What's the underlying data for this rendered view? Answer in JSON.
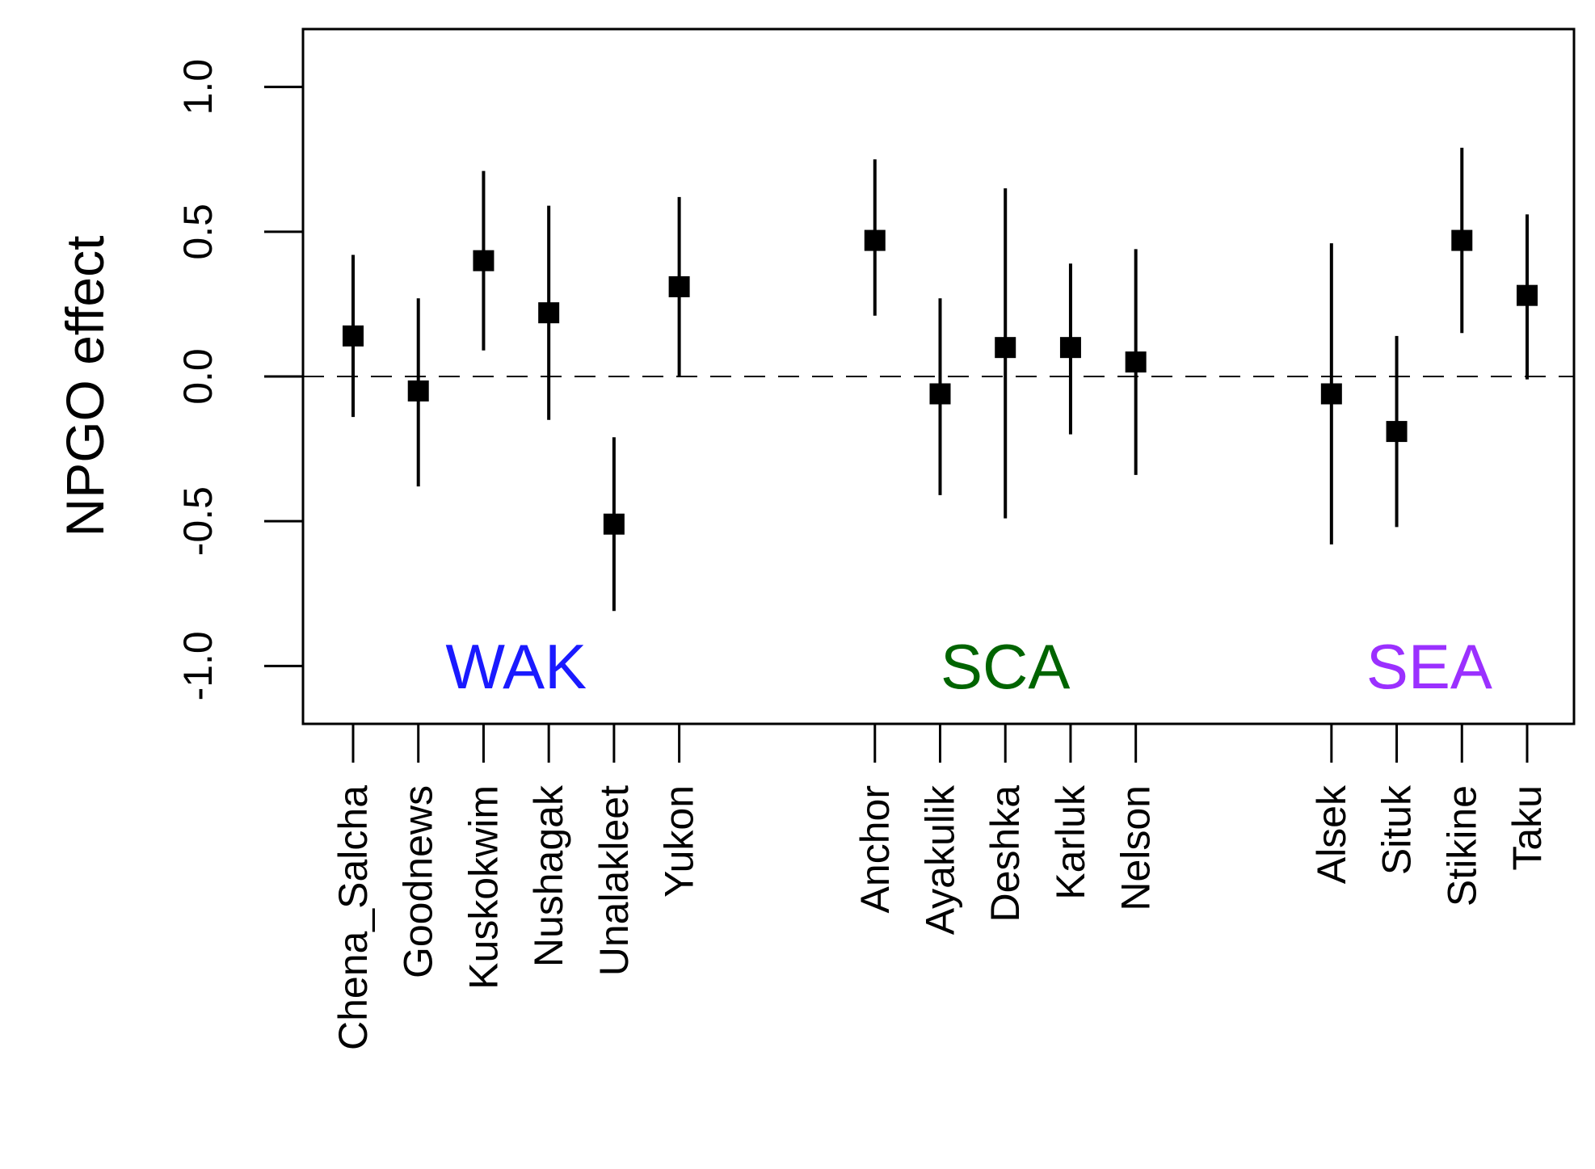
{
  "chart_data": {
    "type": "scatter",
    "subtype": "point estimates with error bars",
    "ylabel": "NPGO effect",
    "xlabel": "",
    "ylim": [
      -1.2,
      1.2
    ],
    "yticks": [
      -1.0,
      -0.5,
      0.0,
      0.5,
      1.0
    ],
    "ytick_labels": [
      "-1.0",
      "-0.5",
      "0.0",
      "0.5",
      "1.0"
    ],
    "reference_line": {
      "y": 0.0,
      "style": "dashed"
    },
    "grid": false,
    "groups": [
      {
        "label": "WAK",
        "color": "#1a1aff",
        "items": [
          {
            "name": "Chena_Salcha",
            "estimate": 0.14,
            "lower": -0.14,
            "upper": 0.42
          },
          {
            "name": "Goodnews",
            "estimate": -0.05,
            "lower": -0.38,
            "upper": 0.27
          },
          {
            "name": "Kuskokwim",
            "estimate": 0.4,
            "lower": 0.09,
            "upper": 0.71
          },
          {
            "name": "Nushagak",
            "estimate": 0.22,
            "lower": -0.15,
            "upper": 0.59
          },
          {
            "name": "Unalakleet",
            "estimate": -0.51,
            "lower": -0.81,
            "upper": -0.21
          },
          {
            "name": "Yukon",
            "estimate": 0.31,
            "lower": 0.0,
            "upper": 0.62
          }
        ]
      },
      {
        "label": "SCA",
        "color": "#006400",
        "items": [
          {
            "name": "Anchor",
            "estimate": 0.47,
            "lower": 0.21,
            "upper": 0.75
          },
          {
            "name": "Ayakulik",
            "estimate": -0.06,
            "lower": -0.41,
            "upper": 0.27
          },
          {
            "name": "Deshka",
            "estimate": 0.1,
            "lower": -0.49,
            "upper": 0.65
          },
          {
            "name": "Karluk",
            "estimate": 0.1,
            "lower": -0.2,
            "upper": 0.39
          },
          {
            "name": "Nelson",
            "estimate": 0.05,
            "lower": -0.34,
            "upper": 0.44
          }
        ]
      },
      {
        "label": "SEA",
        "color": "#9b30ff",
        "items": [
          {
            "name": "Alsek",
            "estimate": -0.06,
            "lower": -0.58,
            "upper": 0.46
          },
          {
            "name": "Situk",
            "estimate": -0.19,
            "lower": -0.52,
            "upper": 0.14
          },
          {
            "name": "Stikine",
            "estimate": 0.47,
            "lower": 0.15,
            "upper": 0.79
          },
          {
            "name": "Taku",
            "estimate": 0.28,
            "lower": -0.01,
            "upper": 0.56
          }
        ]
      }
    ]
  }
}
